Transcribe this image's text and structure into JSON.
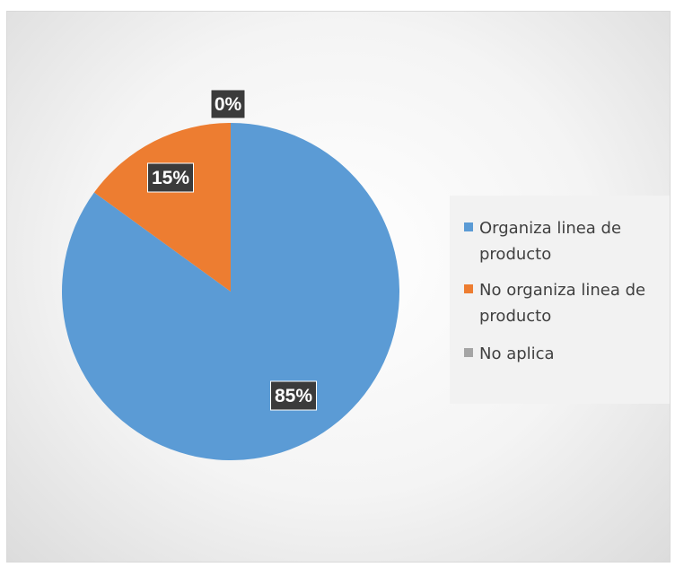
{
  "chart_data": {
    "type": "pie",
    "title": "",
    "slices": [
      {
        "label": "Organiza linea de producto",
        "value": 85,
        "display": "85%",
        "color": "#5b9bd5"
      },
      {
        "label": "No organiza linea de producto",
        "value": 15,
        "display": "15%",
        "color": "#ed7d31"
      },
      {
        "label": "No aplica",
        "value": 0,
        "display": "0%",
        "color": "#a5a5a5"
      }
    ],
    "legend_position": "right",
    "data_labels": true
  }
}
